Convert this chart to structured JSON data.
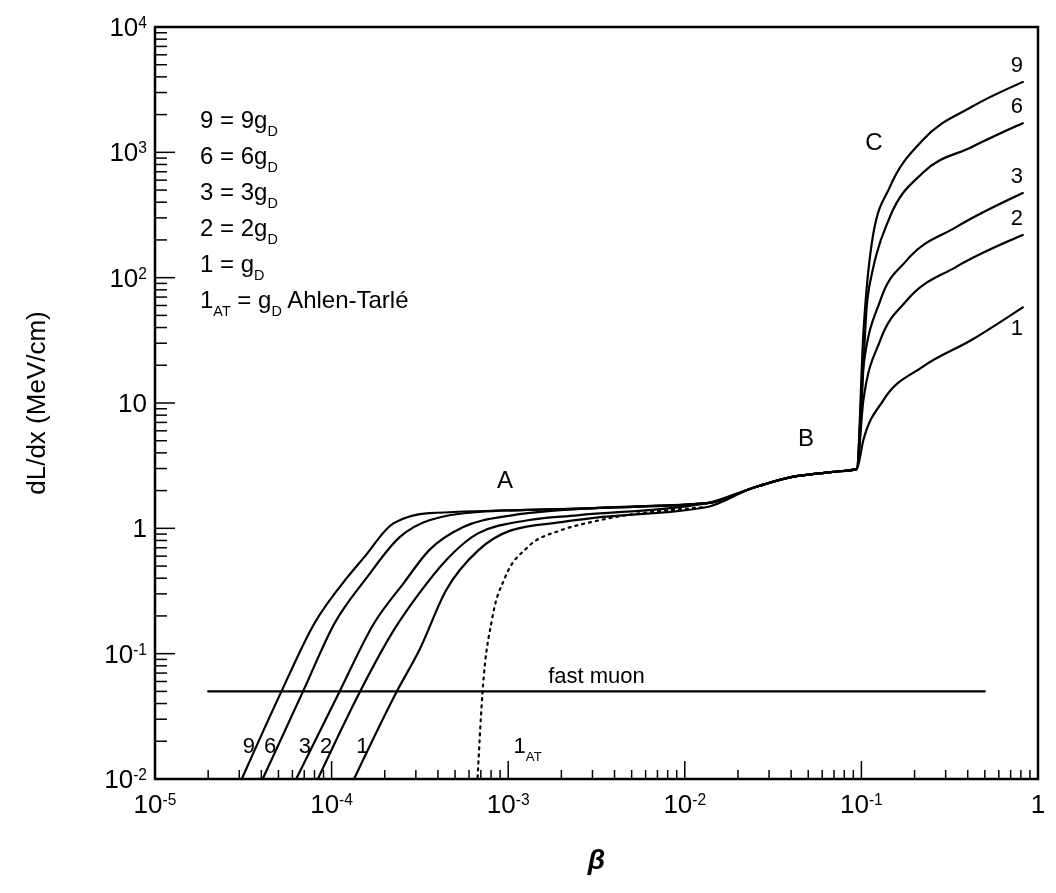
{
  "chart_data": {
    "type": "line",
    "xlabel": "β",
    "ylabel": "dL/dx  (MeV/cm)",
    "log": "xy",
    "grid": false,
    "line_style": "solid",
    "marker": "none",
    "xlim": [
      1e-05,
      1
    ],
    "ylim": [
      0.01,
      10000
    ],
    "xticks": [
      {
        "value": 1e-05,
        "label": "10$^{-5}$"
      },
      {
        "value": 2e-05,
        "label": null
      },
      {
        "value": 3e-05,
        "label": null
      },
      {
        "value": 4e-05,
        "label": null
      },
      {
        "value": 5e-05,
        "label": null
      },
      {
        "value": 6e-05,
        "label": null
      },
      {
        "value": 7e-05,
        "label": null
      },
      {
        "value": 8e-05,
        "label": null
      },
      {
        "value": 9e-05,
        "label": null
      },
      {
        "value": 0.0001,
        "label": "10$^{-4}$"
      },
      {
        "value": 0.0002,
        "label": null
      },
      {
        "value": 0.0003,
        "label": null
      },
      {
        "value": 0.0004,
        "label": null
      },
      {
        "value": 0.0005,
        "label": null
      },
      {
        "value": 0.0006,
        "label": null
      },
      {
        "value": 0.0007,
        "label": null
      },
      {
        "value": 0.0008,
        "label": null
      },
      {
        "value": 0.0009,
        "label": null
      },
      {
        "value": 0.001,
        "label": "10$^{-3}$"
      },
      {
        "value": 0.002,
        "label": null
      },
      {
        "value": 0.003,
        "label": null
      },
      {
        "value": 0.004,
        "label": null
      },
      {
        "value": 0.005,
        "label": null
      },
      {
        "value": 0.006,
        "label": null
      },
      {
        "value": 0.007,
        "label": null
      },
      {
        "value": 0.008,
        "label": null
      },
      {
        "value": 0.009,
        "label": null
      },
      {
        "value": 0.01,
        "label": "10$^{-2}$"
      },
      {
        "value": 0.02,
        "label": null
      },
      {
        "value": 0.03,
        "label": null
      },
      {
        "value": 0.04,
        "label": null
      },
      {
        "value": 0.05,
        "label": null
      },
      {
        "value": 0.06,
        "label": null
      },
      {
        "value": 0.07,
        "label": null
      },
      {
        "value": 0.08,
        "label": null
      },
      {
        "value": 0.09,
        "label": null
      },
      {
        "value": 0.1,
        "label": "10$^{-1}$"
      },
      {
        "value": 0.2,
        "label": null
      },
      {
        "value": 0.3,
        "label": null
      },
      {
        "value": 0.4,
        "label": null
      },
      {
        "value": 0.5,
        "label": null
      },
      {
        "value": 0.6,
        "label": null
      },
      {
        "value": 0.7,
        "label": null
      },
      {
        "value": 0.8,
        "label": null
      },
      {
        "value": 0.9,
        "label": null
      },
      1
    ],
    "yticks": [
      {
        "value": 0.01,
        "label": "10$^{-2}$"
      },
      {
        "value": 0.02,
        "label": null
      },
      {
        "value": 0.03,
        "label": null
      },
      {
        "value": 0.04,
        "label": null
      },
      {
        "value": 0.05,
        "label": null
      },
      {
        "value": 0.06,
        "label": null
      },
      {
        "value": 0.07,
        "label": null
      },
      {
        "value": 0.08,
        "label": null
      },
      {
        "value": 0.09,
        "label": null
      },
      {
        "value": 0.1,
        "label": "10$^{-1}$"
      },
      {
        "value": 0.2,
        "label": null
      },
      {
        "value": 0.3,
        "label": null
      },
      {
        "value": 0.4,
        "label": null
      },
      {
        "value": 0.5,
        "label": null
      },
      {
        "value": 0.6,
        "label": null
      },
      {
        "value": 0.7,
        "label": null
      },
      {
        "value": 0.8,
        "label": null
      },
      {
        "value": 0.9,
        "label": null
      },
      1,
      {
        "value": 2,
        "label": null
      },
      {
        "value": 3,
        "label": null
      },
      {
        "value": 4,
        "label": null
      },
      {
        "value": 5,
        "label": null
      },
      {
        "value": 6,
        "label": null
      },
      {
        "value": 7,
        "label": null
      },
      {
        "value": 8,
        "label": null
      },
      {
        "value": 9,
        "label": null
      },
      10,
      {
        "value": 20,
        "label": null
      },
      {
        "value": 30,
        "label": null
      },
      {
        "value": 40,
        "label": null
      },
      {
        "value": 50,
        "label": null
      },
      {
        "value": 60,
        "label": null
      },
      {
        "value": 70,
        "label": null
      },
      {
        "value": 80,
        "label": null
      },
      {
        "value": 90,
        "label": null
      },
      {
        "value": 100,
        "label": "10$^{2}$"
      },
      {
        "value": 200,
        "label": null
      },
      {
        "value": 300,
        "label": null
      },
      {
        "value": 400,
        "label": null
      },
      {
        "value": 500,
        "label": null
      },
      {
        "value": 600,
        "label": null
      },
      {
        "value": 700,
        "label": null
      },
      {
        "value": 800,
        "label": null
      },
      {
        "value": 900,
        "label": null
      },
      {
        "value": 1000,
        "label": "10$^{3}$"
      },
      {
        "value": 2000,
        "label": null
      },
      {
        "value": 3000,
        "label": null
      },
      {
        "value": 4000,
        "label": null
      },
      {
        "value": 5000,
        "label": null
      },
      {
        "value": 6000,
        "label": null
      },
      {
        "value": 7000,
        "label": null
      },
      {
        "value": 8000,
        "label": null
      },
      {
        "value": 9000,
        "label": null
      },
      {
        "value": 10000,
        "label": "10$^{4}$"
      }
    ],
    "series": [
      {
        "name": "9",
        "color": "#000000",
        "x": [
          3.1e-05,
          5.2e-05,
          8e-05,
          0.000123,
          0.000153,
          0.000225,
          0.000357,
          0.00306,
          0.0134,
          0.024,
          0.04,
          0.067,
          0.094,
          0.1026,
          0.117,
          0.145,
          0.222,
          0.42,
          0.82
        ],
        "values": [
          0.01,
          0.05,
          0.175,
          0.408,
          0.589,
          1.1,
          1.32,
          1.45,
          1.59,
          2.09,
          2.56,
          2.81,
          2.97,
          36,
          227,
          530,
          1250,
          2300,
          3640
        ]
      },
      {
        "name": "6",
        "color": "#000000",
        "x": [
          4.07e-05,
          6.89e-05,
          0.000104,
          0.000159,
          0.000243,
          0.000357,
          0.000679,
          0.00306,
          0.0134,
          0.024,
          0.04,
          0.067,
          0.094,
          0.108,
          0.117,
          0.145,
          0.222,
          0.42,
          0.82
        ],
        "values": [
          0.01,
          0.05,
          0.175,
          0.408,
          0.851,
          1.16,
          1.35,
          1.45,
          1.59,
          2.09,
          2.56,
          2.81,
          2.97,
          66,
          122,
          305,
          684,
          1100,
          1710
        ]
      },
      {
        "name": "3",
        "color": "#000000",
        "x": [
          6.3e-05,
          0.000111,
          0.000174,
          0.000256,
          0.000357,
          0.000553,
          0.00105,
          0.00306,
          0.0134,
          0.024,
          0.04,
          0.067,
          0.094,
          0.1026,
          0.128,
          0.181,
          0.344,
          0.82
        ],
        "values": [
          0.01,
          0.05,
          0.175,
          0.366,
          0.67,
          1.02,
          1.27,
          1.45,
          1.59,
          2.09,
          2.56,
          2.81,
          2.97,
          19.4,
          66,
          138,
          253,
          473
        ]
      },
      {
        "name": "2",
        "color": "#000000",
        "x": [
          8.36e-05,
          0.000145,
          0.000225,
          0.000314,
          0.000445,
          0.000679,
          0.00129,
          0.00246,
          0.0134,
          0.024,
          0.04,
          0.067,
          0.094,
          0.1026,
          0.128,
          0.181,
          0.344,
          0.82
        ],
        "values": [
          0.01,
          0.05,
          0.154,
          0.304,
          0.557,
          0.916,
          1.16,
          1.27,
          1.59,
          2.09,
          2.56,
          2.81,
          2.97,
          10.5,
          31.8,
          66,
          122,
          219
        ]
      },
      {
        "name": "1",
        "color": "#000000",
        "x": [
          0.000134,
          0.000234,
          0.000314,
          0.000445,
          0.000679,
          0.00105,
          0.002,
          0.00306,
          0.0134,
          0.024,
          0.04,
          0.067,
          0.094,
          0.1026,
          0.133,
          0.222,
          0.42,
          0.82
        ],
        "values": [
          0.01,
          0.05,
          0.107,
          0.321,
          0.67,
          0.968,
          1.12,
          1.21,
          1.48,
          2.09,
          2.56,
          2.81,
          2.97,
          5.06,
          10.5,
          19.4,
          31.8,
          58
        ]
      },
      {
        "name": "1$_{AT}$",
        "color": "#000000",
        "line_style": "dotted",
        "x": [
          0.000671,
          0.000716,
          0.000814,
          0.000962,
          0.00129,
          0.002,
          0.00294,
          0.0134
        ],
        "values": [
          0.0103,
          0.05,
          0.195,
          0.408,
          0.708,
          0.968,
          1.12,
          1.48
        ]
      },
      {
        "name": "fast muon",
        "color": "#000000",
        "x": [
          2e-05,
          0.5
        ],
        "values": [
          0.05,
          0.05
        ]
      }
    ],
    "annotations": [
      "9 = 9g$_{D}$",
      "6 = 6g$_{D}$",
      "3 = 3g$_{D}$",
      "2 = 2g$_{D}$",
      "1 = g$_{D}$",
      "1$_{AT}$ = g$_{D}$ Ahlen-Tarlé",
      "A",
      "B",
      "C"
    ]
  }
}
